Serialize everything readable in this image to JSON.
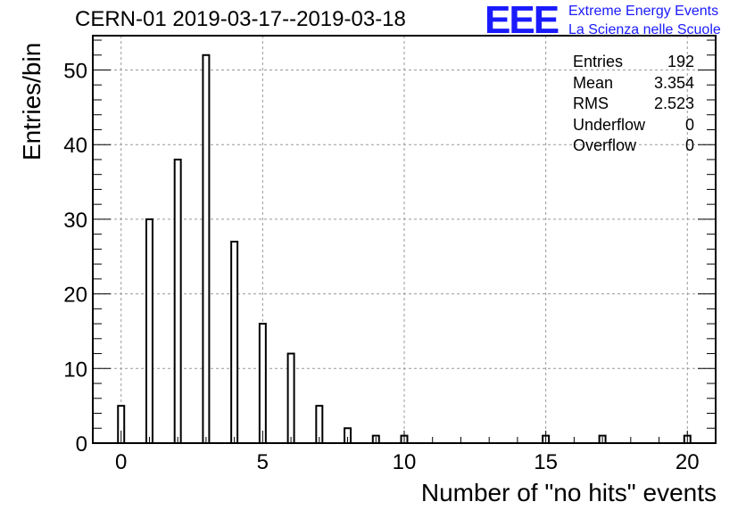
{
  "chart_data": {
    "type": "bar",
    "title": "CERN-01 2019-03-17--2019-03-18",
    "xlabel": "Number of \"no hits\" events",
    "ylabel": "Entries/bin",
    "xlim": [
      -1,
      21
    ],
    "ylim": [
      0,
      54.6
    ],
    "xticks": [
      "0",
      "5",
      "10",
      "15",
      "20"
    ],
    "yticks": [
      "0",
      "10",
      "20",
      "30",
      "40",
      "50"
    ],
    "grid": true,
    "x": [
      0,
      1,
      2,
      3,
      4,
      5,
      6,
      7,
      8,
      9,
      10,
      15,
      17,
      20
    ],
    "values": [
      5,
      30,
      38,
      52,
      27,
      16,
      12,
      5,
      2,
      1,
      1,
      1,
      1,
      1
    ],
    "stats": {
      "entries_label": "Entries",
      "entries": "192",
      "mean_label": "Mean",
      "mean": "3.354",
      "rms_label": "RMS",
      "rms": "2.523",
      "underflow_label": "Underflow",
      "underflow": "0",
      "overflow_label": "Overflow",
      "overflow": "0"
    }
  },
  "logo": {
    "mark": "EEE",
    "line1": "Extreme Energy Events",
    "line2": "La Scienza nelle Scuole",
    "color": "#1a1aff"
  }
}
